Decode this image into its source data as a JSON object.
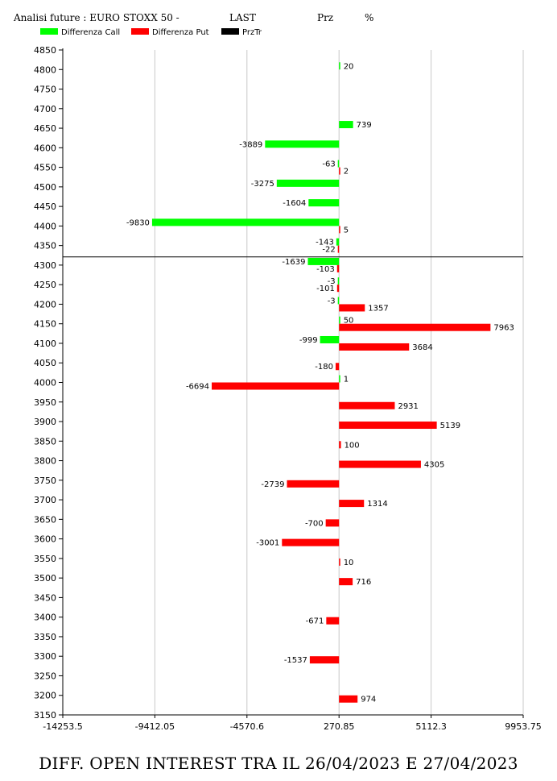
{
  "header": {
    "title": "Analisi future : EURO STOXX 50 -",
    "last_label": "LAST",
    "prz_label": "Prz",
    "pct_label": "%"
  },
  "footer": {
    "caption": "DIFF. OPEN INTEREST TRA IL 26/04/2023 E 27/04/2023"
  },
  "chart_data": {
    "type": "bar",
    "orientation": "horizontal",
    "xlim": [
      -14253.5,
      9953.75
    ],
    "x_ticks": [
      "-14253.5",
      "-9412.05",
      "-4570.6",
      "270.85",
      "5112.3",
      "9953.75"
    ],
    "x_tick_values": [
      -14253.5,
      -9412.05,
      -4570.6,
      270.85,
      5112.3,
      9953.75
    ],
    "baseline": 270.85,
    "ylim": [
      3150,
      4850
    ],
    "y_ticks": [
      3150,
      3200,
      3250,
      3300,
      3350,
      3400,
      3450,
      3500,
      3550,
      3600,
      3650,
      3700,
      3750,
      3800,
      3850,
      3900,
      3950,
      4000,
      4050,
      4100,
      4150,
      4200,
      4250,
      4300,
      4350,
      4400,
      4450,
      4500,
      4550,
      4600,
      4650,
      4700,
      4750,
      4800,
      4850
    ],
    "grid": "vertical",
    "reference_line": {
      "name": "PrzTr",
      "y": 4321
    },
    "legend_position": "top-left",
    "series": [
      {
        "name": "Differenza Call",
        "color": "#00ff00",
        "points": [
          {
            "strike": 4800,
            "value": 20
          },
          {
            "strike": 4650,
            "value": 739
          },
          {
            "strike": 4600,
            "value": -3889
          },
          {
            "strike": 4550,
            "value": -63
          },
          {
            "strike": 4500,
            "value": -3275
          },
          {
            "strike": 4450,
            "value": -1604
          },
          {
            "strike": 4400,
            "value": -9830
          },
          {
            "strike": 4350,
            "value": -143
          },
          {
            "strike": 4300,
            "value": -1639
          },
          {
            "strike": 4250,
            "value": -3
          },
          {
            "strike": 4200,
            "value": -3
          },
          {
            "strike": 4150,
            "value": 50
          },
          {
            "strike": 4100,
            "value": -999
          },
          {
            "strike": 4000,
            "value": 1
          }
        ]
      },
      {
        "name": "Differenza Put",
        "color": "#ff0000",
        "points": [
          {
            "strike": 4550,
            "value": 2
          },
          {
            "strike": 4400,
            "value": 5
          },
          {
            "strike": 4350,
            "value": -22
          },
          {
            "strike": 4300,
            "value": -103
          },
          {
            "strike": 4250,
            "value": -101
          },
          {
            "strike": 4200,
            "value": 1357
          },
          {
            "strike": 4150,
            "value": 7963
          },
          {
            "strike": 4100,
            "value": 3684
          },
          {
            "strike": 4050,
            "value": -180
          },
          {
            "strike": 4000,
            "value": -6694
          },
          {
            "strike": 3950,
            "value": 2931
          },
          {
            "strike": 3900,
            "value": 5139
          },
          {
            "strike": 3850,
            "value": 100
          },
          {
            "strike": 3800,
            "value": 4305
          },
          {
            "strike": 3750,
            "value": -2739
          },
          {
            "strike": 3700,
            "value": 1314
          },
          {
            "strike": 3650,
            "value": -700
          },
          {
            "strike": 3600,
            "value": -3001
          },
          {
            "strike": 3550,
            "value": 10
          },
          {
            "strike": 3500,
            "value": 716
          },
          {
            "strike": 3400,
            "value": -671
          },
          {
            "strike": 3300,
            "value": -1537
          },
          {
            "strike": 3200,
            "value": 974
          }
        ]
      },
      {
        "name": "PrzTr",
        "color": "#000000",
        "points": []
      }
    ]
  }
}
